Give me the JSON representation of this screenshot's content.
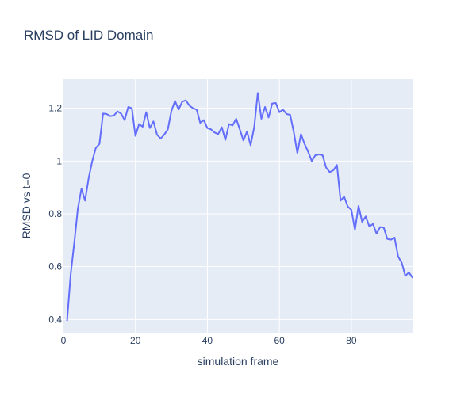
{
  "chart_data": {
    "type": "line",
    "title": "RMSD of LID Domain",
    "xlabel": "simulation frame",
    "ylabel": "RMSD vs t=0",
    "xlim": [
      0,
      97
    ],
    "ylim": [
      0.35,
      1.31
    ],
    "x_ticks": [
      0,
      20,
      40,
      60,
      80
    ],
    "y_ticks": [
      0.4,
      0.6,
      0.8,
      1,
      1.2
    ],
    "x_tick_labels": [
      "0",
      "20",
      "40",
      "60",
      "80"
    ],
    "y_tick_labels": [
      "0.4",
      "0.6",
      "0.8",
      "1",
      "1.2"
    ],
    "grid": true,
    "plot_bg_color": "#e5ecf6",
    "grid_color": "#ffffff",
    "series": [
      {
        "color": "#636efa",
        "x": [
          1,
          2,
          3,
          4,
          5,
          6,
          7,
          8,
          9,
          10,
          11,
          12,
          13,
          14,
          15,
          16,
          17,
          18,
          19,
          20,
          21,
          22,
          23,
          24,
          25,
          26,
          27,
          28,
          29,
          30,
          31,
          32,
          33,
          34,
          35,
          36,
          37,
          38,
          39,
          40,
          41,
          42,
          43,
          44,
          45,
          46,
          47,
          48,
          49,
          50,
          51,
          52,
          53,
          54,
          55,
          56,
          57,
          58,
          59,
          60,
          61,
          62,
          63,
          64,
          65,
          66,
          67,
          68,
          69,
          70,
          71,
          72,
          73,
          74,
          75,
          76,
          77,
          78,
          79,
          80,
          81,
          82,
          83,
          84,
          85,
          86,
          87,
          88,
          89,
          90,
          91,
          92,
          93,
          94,
          95,
          96,
          97
        ],
        "values": [
          0.395,
          0.57,
          0.69,
          0.82,
          0.895,
          0.85,
          0.935,
          1.0,
          1.05,
          1.065,
          1.18,
          1.178,
          1.17,
          1.172,
          1.188,
          1.18,
          1.155,
          1.205,
          1.2,
          1.095,
          1.14,
          1.13,
          1.185,
          1.125,
          1.15,
          1.1,
          1.085,
          1.1,
          1.12,
          1.19,
          1.228,
          1.195,
          1.225,
          1.23,
          1.21,
          1.2,
          1.195,
          1.145,
          1.155,
          1.125,
          1.12,
          1.108,
          1.102,
          1.128,
          1.08,
          1.14,
          1.135,
          1.16,
          1.12,
          1.078,
          1.112,
          1.06,
          1.128,
          1.258,
          1.16,
          1.205,
          1.165,
          1.218,
          1.22,
          1.185,
          1.195,
          1.178,
          1.175,
          1.11,
          1.03,
          1.102,
          1.065,
          1.035,
          1.0,
          1.022,
          1.025,
          1.022,
          0.975,
          0.958,
          0.965,
          0.985,
          0.85,
          0.865,
          0.828,
          0.815,
          0.74,
          0.83,
          0.77,
          0.79,
          0.752,
          0.762,
          0.725,
          0.75,
          0.748,
          0.705,
          0.702,
          0.71,
          0.638,
          0.615,
          0.565,
          0.578,
          0.558
        ]
      }
    ]
  }
}
